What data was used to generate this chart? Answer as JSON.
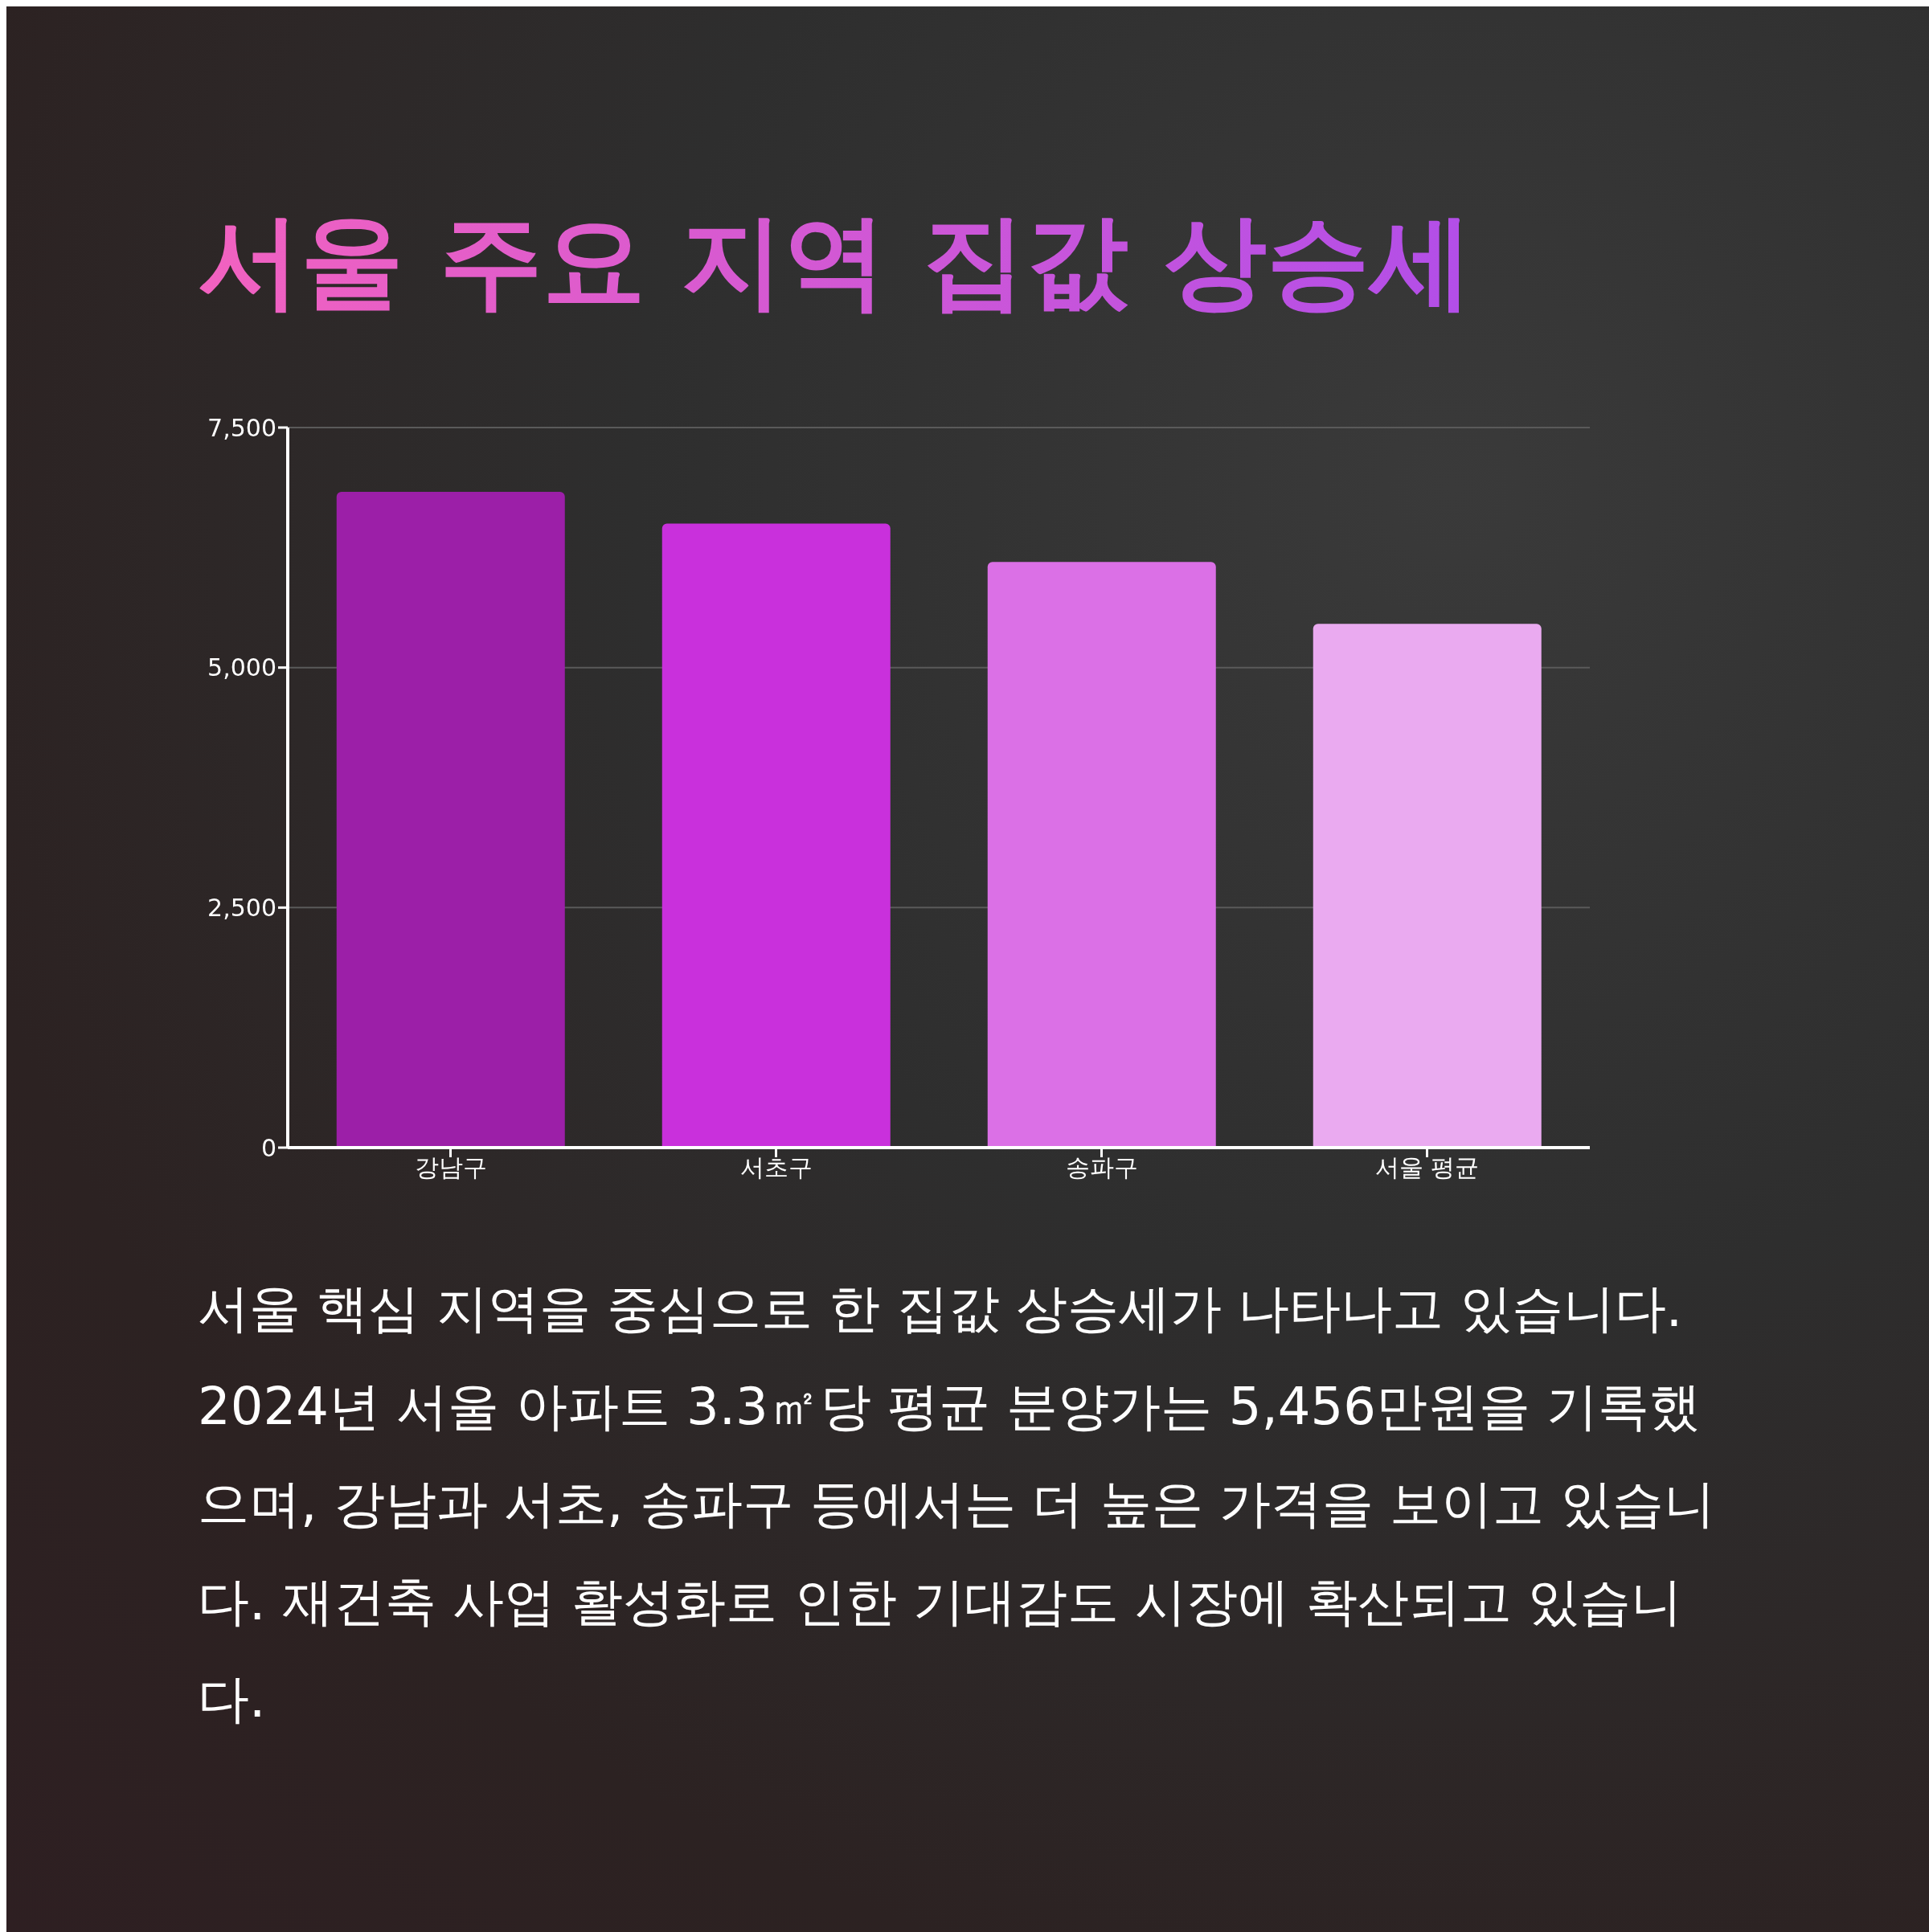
{
  "chart_data": {
    "type": "bar",
    "title": "서울 주요 지역 집값 상승세",
    "categories": [
      "강남구",
      "서초구",
      "송파구",
      "서울 평균"
    ],
    "values": [
      6830,
      6500,
      6100,
      5456
    ],
    "colors": [
      "#9c1fa8",
      "#c930dc",
      "#db70e6",
      "#eaaaf0"
    ],
    "ylim": [
      0,
      7500
    ],
    "yticks": [
      {
        "value": 0,
        "label": "0"
      },
      {
        "value": 2500,
        "label": "2,500"
      },
      {
        "value": 5000,
        "label": "5,000"
      },
      {
        "value": 7500,
        "label": "7,500"
      }
    ],
    "grid": "y",
    "annotations": [
      "서울 핵심 지역을 중심으로 한 집값 상승세가 나타나고 있습니다. 2024년 서울 아파트 3.3㎡당 평균 분양가는 5,456만원을 기록했으며, 강남과 서초, 송파구 등에서는 더 높은 가격을 보이고 있습니다. 재건축 사업 활성화로 인한 기대감도 시장에 확산되고 있습니다."
    ]
  }
}
